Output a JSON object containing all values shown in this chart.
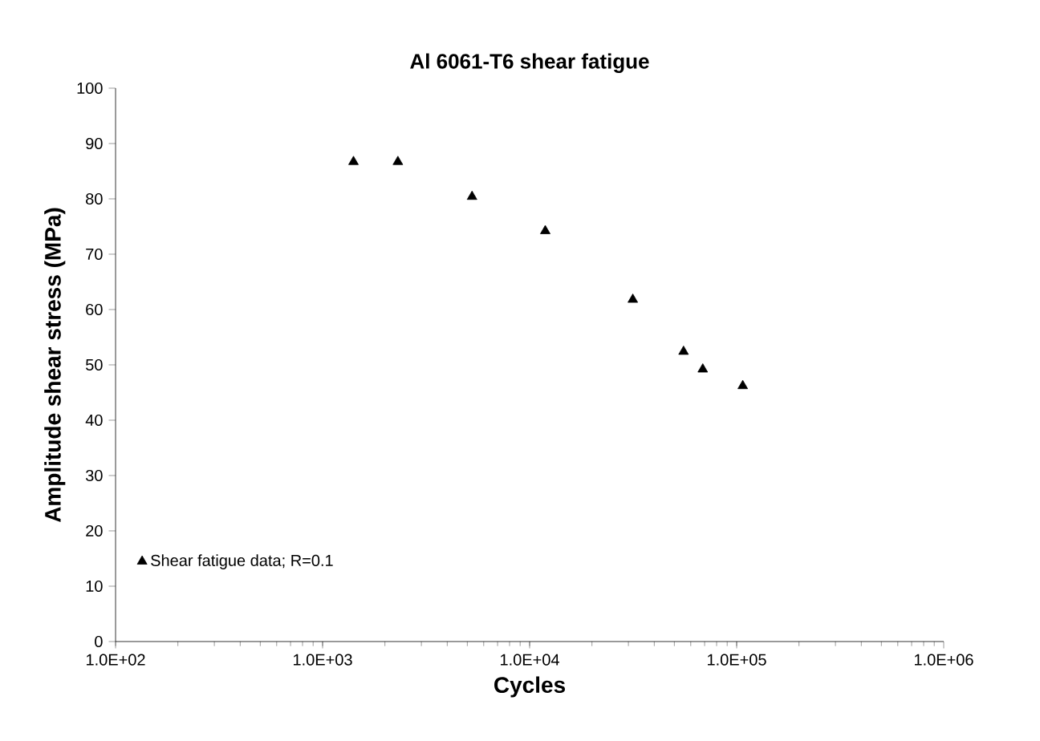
{
  "chart_data": {
    "type": "scatter",
    "title": "Al 6061-T6 shear fatigue",
    "xlabel": "Cycles",
    "ylabel": "Amplitude shear stress (MPa)",
    "log": "x",
    "marker": "triangle",
    "legend": "bottom left",
    "grid": false,
    "xlim": [
      100,
      1000000
    ],
    "xticks": [
      {
        "value": 100,
        "label": "1.0E+02"
      },
      {
        "value": 1000,
        "label": "1.0E+03"
      },
      {
        "value": 10000,
        "label": "1.0E+04"
      },
      {
        "value": 100000,
        "label": "1.0E+05"
      },
      {
        "value": 1000000,
        "label": "1.0E+06"
      }
    ],
    "ylim": [
      0,
      100
    ],
    "yticks": [
      0,
      10,
      20,
      30,
      40,
      50,
      60,
      70,
      80,
      90,
      100
    ],
    "series": [
      {
        "name": "Shear fatigue data; R=0.1",
        "color": "#000000",
        "x": [
          1410,
          2310,
          5270,
          11900,
          31500,
          55400,
          68600,
          107000
        ],
        "values": [
          86.7,
          86.7,
          80.4,
          74.2,
          61.8,
          52.4,
          49.2,
          46.2
        ]
      }
    ]
  }
}
